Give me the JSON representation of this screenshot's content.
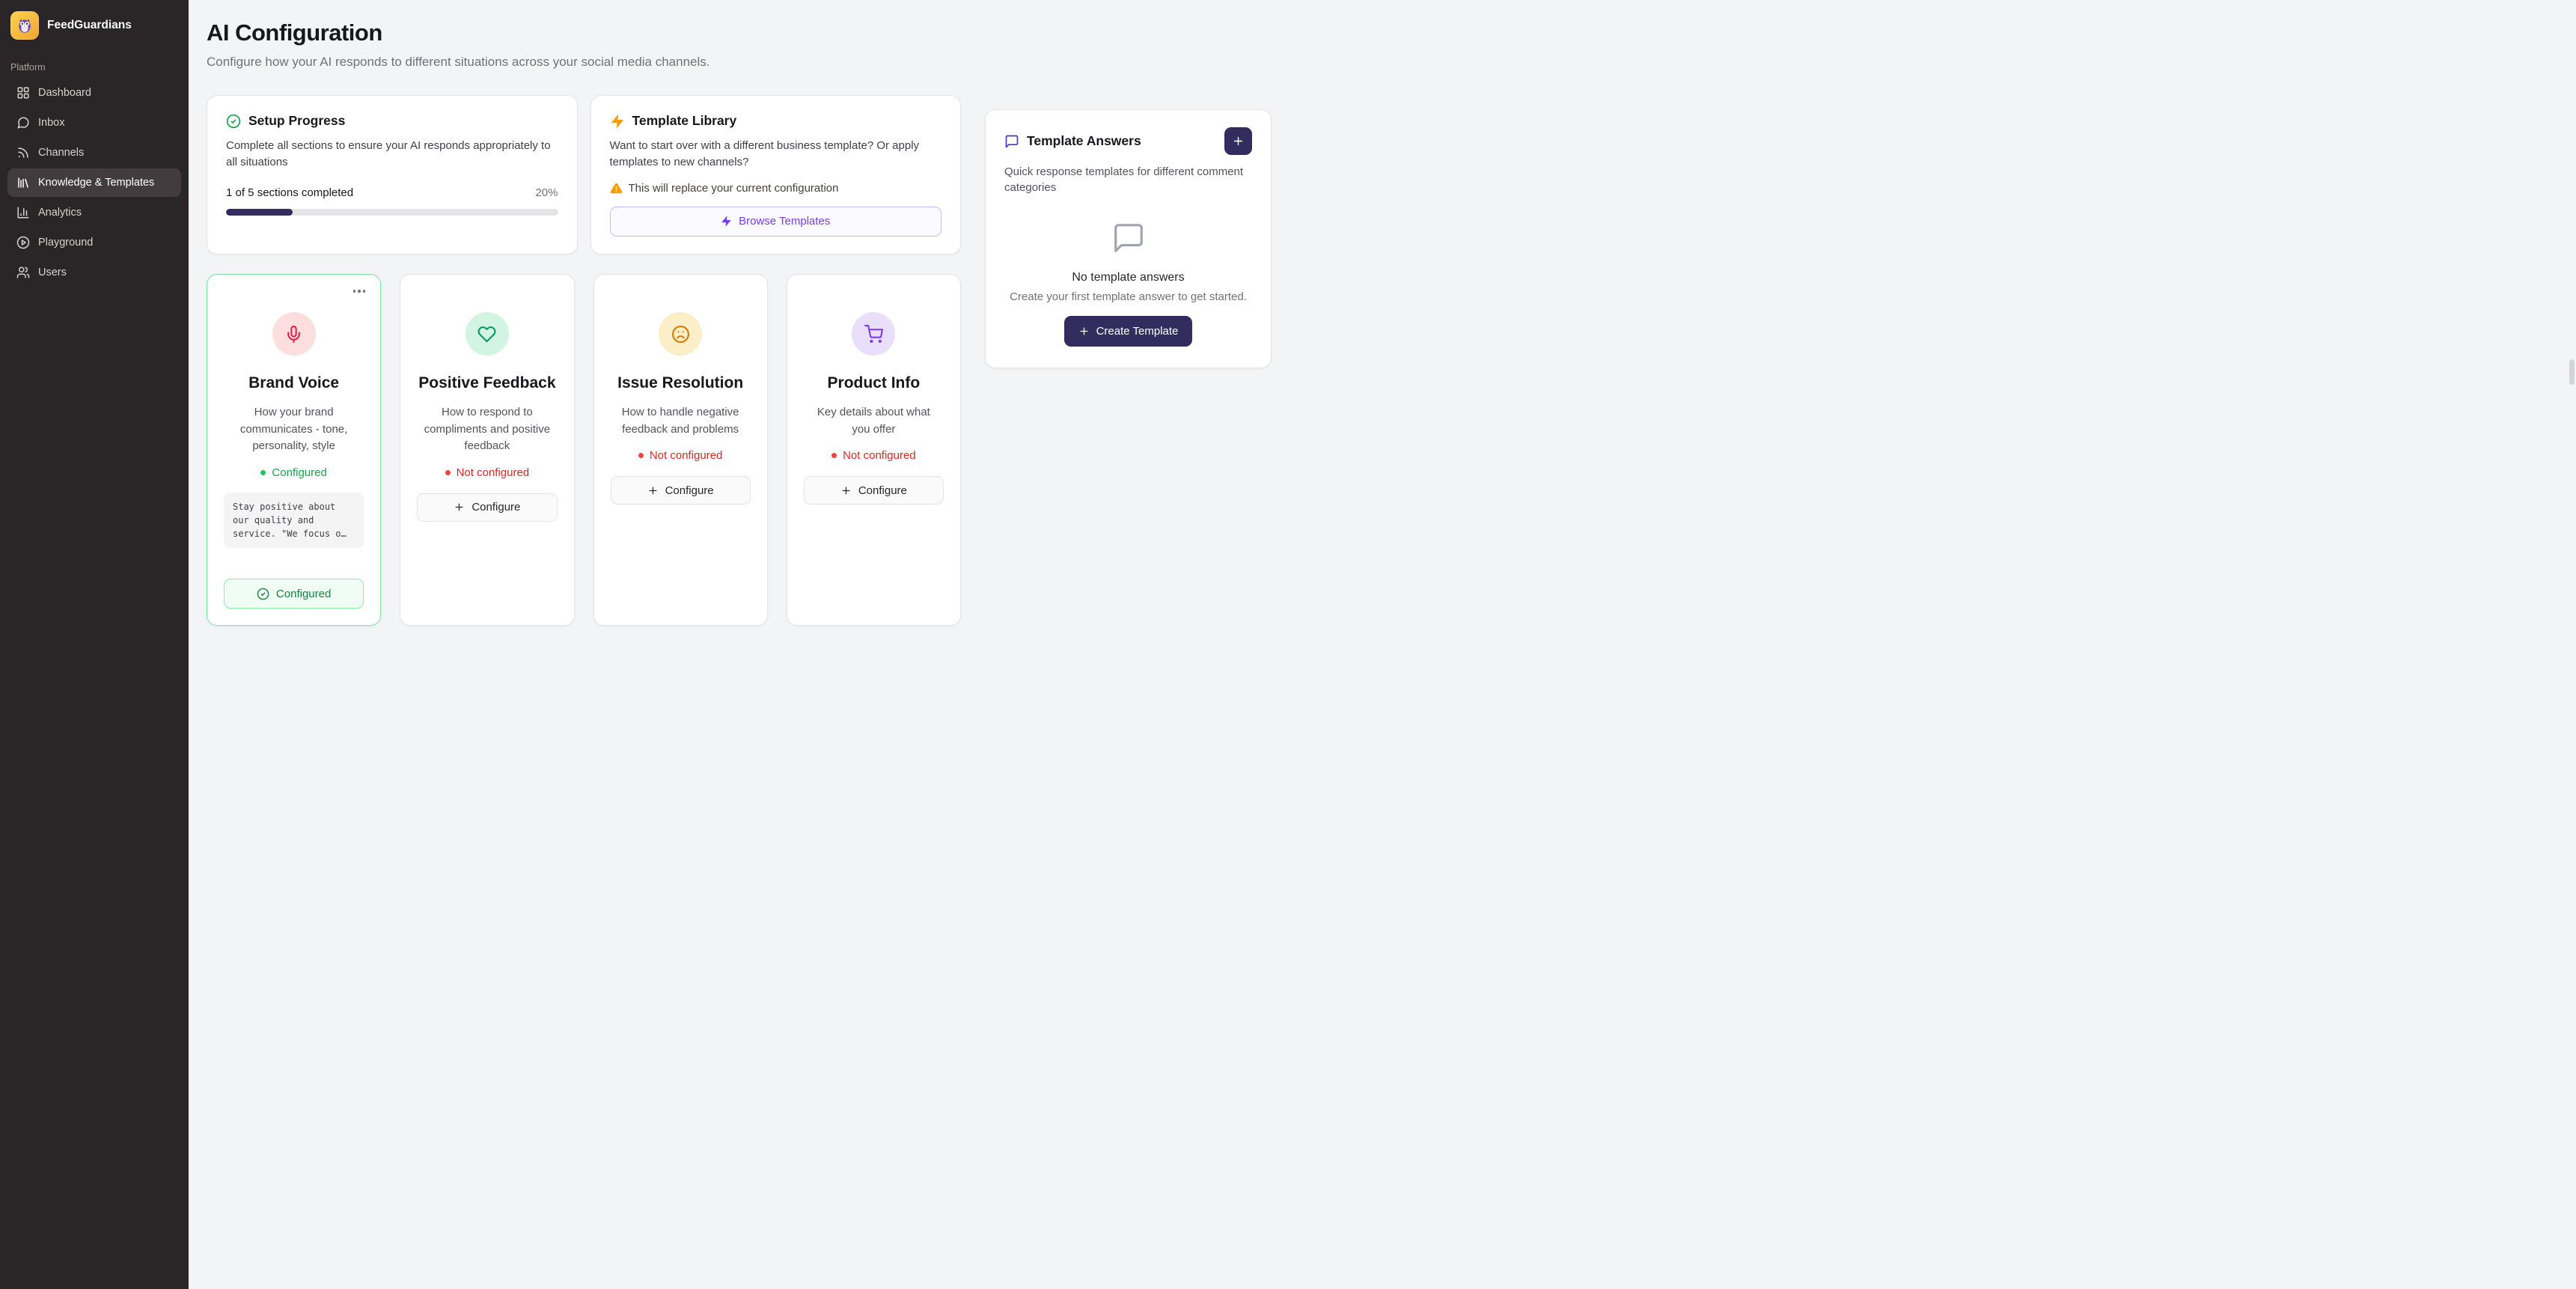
{
  "brand": {
    "name": "FeedGuardians"
  },
  "sidebar": {
    "section_label": "Platform",
    "items": [
      {
        "label": "Dashboard",
        "icon": "dashboard-grid-icon",
        "active": false
      },
      {
        "label": "Inbox",
        "icon": "inbox-chat-icon",
        "active": false
      },
      {
        "label": "Channels",
        "icon": "channels-rss-icon",
        "active": false
      },
      {
        "label": "Knowledge & Templates",
        "icon": "knowledge-library-icon",
        "active": true
      },
      {
        "label": "Analytics",
        "icon": "analytics-chart-icon",
        "active": false
      },
      {
        "label": "Playground",
        "icon": "playground-play-icon",
        "active": false
      },
      {
        "label": "Users",
        "icon": "users-icon",
        "active": false
      }
    ]
  },
  "page": {
    "title": "AI Configuration",
    "subtitle": "Configure how your AI responds to different situations across your social media channels."
  },
  "setup_progress": {
    "title": "Setup Progress",
    "icon": "check-circle-icon",
    "description": "Complete all sections to ensure your AI responds appropriately to all situations",
    "progress_label": "1 of 5 sections completed",
    "progress_percent_label": "20%",
    "progress_percent": 20
  },
  "template_library": {
    "title": "Template Library",
    "icon": "lightning-icon",
    "description": "Want to start over with a different business template? Or apply templates to new channels?",
    "warning": "This will replace your current configuration",
    "warning_icon": "warning-triangle-icon",
    "browse_button": "Browse Templates"
  },
  "template_answers": {
    "title": "Template Answers",
    "icon": "speech-bubble-icon",
    "description": "Quick response templates for different comment categories",
    "empty_state": {
      "icon": "speech-bubble-icon",
      "title": "No template answers",
      "subtitle": "Create your first template answer to get started.",
      "create_button": "Create Template"
    }
  },
  "sections": [
    {
      "title": "Brand Voice",
      "icon": "microphone-icon",
      "description": "How your brand communicates - tone, personality, style",
      "status": "Configured",
      "configured": true,
      "preview": "Stay positive about our quality and service. \"We focus o…",
      "action_button": "Configured"
    },
    {
      "title": "Positive Feedback",
      "icon": "heart-icon",
      "description": "How to respond to compliments and positive feedback",
      "status": "Not configured",
      "configured": false,
      "action_button": "Configure"
    },
    {
      "title": "Issue Resolution",
      "icon": "frown-face-icon",
      "description": "How to handle negative feedback and problems",
      "status": "Not configured",
      "configured": false,
      "action_button": "Configure"
    },
    {
      "title": "Product Info",
      "icon": "shopping-cart-icon",
      "description": "Key details about what you offer",
      "status": "Not configured",
      "configured": false,
      "action_button": "Configure"
    }
  ],
  "colors": {
    "accent_purple": "#7c3aed",
    "dark_indigo_button": "#322c5f",
    "success_green": "#16a34a",
    "error_red": "#dc2626",
    "warning_amber": "#f59e0b",
    "sidebar_bg": "#2a2527"
  }
}
